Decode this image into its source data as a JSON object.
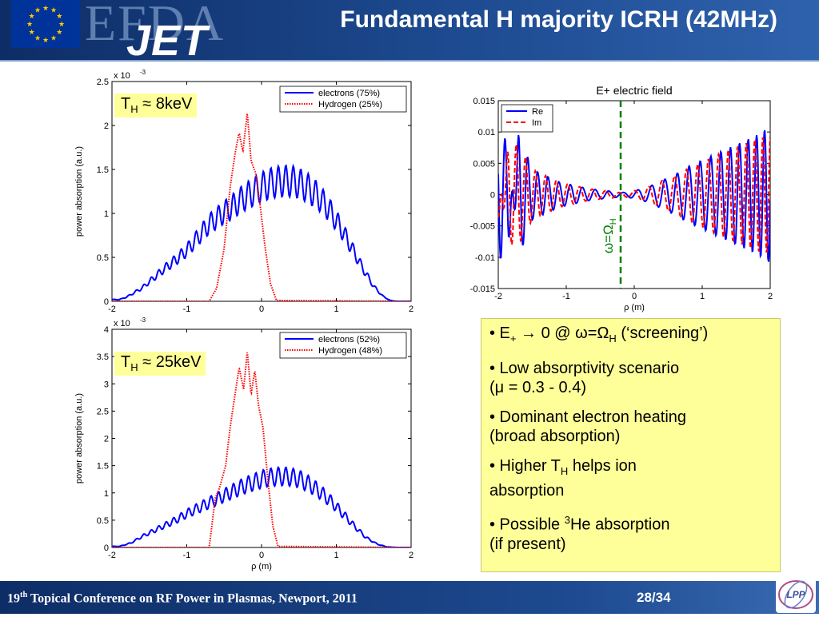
{
  "header": {
    "title": "Fundamental H majority ICRH (42MHz)",
    "logo_efda": "EFDA",
    "logo_jet": "JET"
  },
  "footer": {
    "conference_ord": "19",
    "conference_sup": "th",
    "conference_rest": " Topical Conference on RF Power in Plasmas, Newport, 2011",
    "page": "28/34",
    "logo_text": "LPP"
  },
  "labels": {
    "th1_sym": "T",
    "th1_sub": "H",
    "th1_val": " ≈ 8keV",
    "th2_sym": "T",
    "th2_sub": "H",
    "th2_val": " ≈ 25keV",
    "omega_vertical": "ω=Ω",
    "omega_vertical_sub": "H"
  },
  "notes": {
    "n1_a": "• E",
    "n1_sub": "+",
    "n1_b": " → 0 @ ω=Ω",
    "n1_sub2": "H",
    "n1_c": " (‘screening’)",
    "n2_l1": "• Low absorptivity scenario",
    "n2_l2": "(μ = 0.3 - 0.4)",
    "n3_l1": "• Dominant electron heating",
    "n3_l2": "(broad absorption)",
    "n4_a": "• Higher T",
    "n4_sub": "H",
    "n4_b": " helps ion",
    "n4_l2": "absorption",
    "n5_a": "• Possible ",
    "n5_sup": "3",
    "n5_b": "He absorption",
    "n5_l2": "(if present)"
  },
  "colors": {
    "electrons": "#0000ff",
    "hydrogen": "#ff0000",
    "re": "#0000ff",
    "im": "#ff0000",
    "resonance_line": "#007f00",
    "highlight": "#ffff99"
  },
  "chart_data": [
    {
      "type": "line",
      "title": "",
      "xlabel": "",
      "ylabel": "power absorption (a.u.)",
      "y_multiplier": "x 10",
      "y_multiplier_exp": "-3",
      "xlim": [
        -2,
        2
      ],
      "ylim": [
        0,
        2.5
      ],
      "xticks": [
        -2,
        -1,
        0,
        1,
        2
      ],
      "yticks": [
        0,
        0.5,
        1,
        1.5,
        2,
        2.5
      ],
      "xtick_labels": [
        "-2",
        "-1",
        "0",
        "1",
        "2"
      ],
      "ytick_labels": [
        "0",
        "0.5",
        "1",
        "1.5",
        "2",
        "2.5"
      ],
      "legend": "top-right",
      "series": [
        {
          "name": "electrons (75%)",
          "style": "solid",
          "x": [
            -1.9,
            -1.8,
            -1.6,
            -1.45,
            -1.3,
            -1.15,
            -1.0,
            -0.85,
            -0.7,
            -0.55,
            -0.4,
            -0.25,
            -0.1,
            0.0,
            0.15,
            0.3,
            0.45,
            0.6,
            0.75,
            0.9,
            1.05,
            1.2,
            1.35,
            1.5,
            1.62,
            1.72,
            1.8
          ],
          "y": [
            0.02,
            0.05,
            0.15,
            0.26,
            0.37,
            0.47,
            0.58,
            0.73,
            0.88,
            0.98,
            1.07,
            1.17,
            1.25,
            1.3,
            1.35,
            1.37,
            1.36,
            1.3,
            1.2,
            1.05,
            0.85,
            0.62,
            0.38,
            0.17,
            0.06,
            0.01,
            0.0
          ]
        },
        {
          "name": "Hydrogen (25%)",
          "style": "dotted",
          "x": [
            -1.9,
            -0.7,
            -0.6,
            -0.5,
            -0.42,
            -0.35,
            -0.3,
            -0.25,
            -0.19,
            -0.14,
            -0.08,
            -0.02,
            0.05,
            0.12,
            0.2,
            1.9
          ],
          "y": [
            0.0,
            0.0,
            0.15,
            0.6,
            1.3,
            1.7,
            1.92,
            1.7,
            2.15,
            1.6,
            1.46,
            1.1,
            0.6,
            0.2,
            0.01,
            0.0
          ]
        }
      ]
    },
    {
      "type": "line",
      "title": "",
      "xlabel": "ρ (m)",
      "ylabel": "power absorption (a.u.)",
      "y_multiplier": "x 10",
      "y_multiplier_exp": "-3",
      "xlim": [
        -2,
        2
      ],
      "ylim": [
        0,
        4
      ],
      "xticks": [
        -2,
        -1,
        0,
        1,
        2
      ],
      "yticks": [
        0,
        0.5,
        1,
        1.5,
        2,
        2.5,
        3,
        3.5,
        4
      ],
      "xtick_labels": [
        "-2",
        "-1",
        "0",
        "1",
        "2"
      ],
      "ytick_labels": [
        "0",
        "0.5",
        "1",
        "1.5",
        "2",
        "2.5",
        "3",
        "3.5",
        "4"
      ],
      "legend": "top-right",
      "series": [
        {
          "name": "electrons (52%)",
          "style": "solid",
          "x": [
            -1.9,
            -1.75,
            -1.6,
            -1.45,
            -1.3,
            -1.15,
            -1.0,
            -0.85,
            -0.7,
            -0.55,
            -0.4,
            -0.25,
            -0.1,
            0.05,
            0.2,
            0.35,
            0.5,
            0.65,
            0.8,
            0.95,
            1.1,
            1.25,
            1.4,
            1.55,
            1.68,
            1.8
          ],
          "y": [
            0.02,
            0.08,
            0.2,
            0.3,
            0.4,
            0.5,
            0.62,
            0.72,
            0.82,
            0.92,
            1.02,
            1.12,
            1.2,
            1.27,
            1.3,
            1.3,
            1.26,
            1.15,
            1.0,
            0.82,
            0.6,
            0.38,
            0.18,
            0.06,
            0.01,
            0.0
          ]
        },
        {
          "name": "Hydrogen (48%)",
          "style": "dotted",
          "x": [
            -1.9,
            -0.7,
            -0.62,
            -0.56,
            -0.48,
            -0.42,
            -0.36,
            -0.3,
            -0.24,
            -0.19,
            -0.14,
            -0.09,
            -0.04,
            0.02,
            0.08,
            0.15,
            0.22,
            1.9
          ],
          "y": [
            0.0,
            0.0,
            0.9,
            1.1,
            1.5,
            2.2,
            2.75,
            3.3,
            2.9,
            3.6,
            2.8,
            3.25,
            2.6,
            2.2,
            1.3,
            0.4,
            0.02,
            0.0
          ]
        }
      ]
    },
    {
      "type": "line",
      "title": "E+ electric field",
      "xlabel": "ρ (m)",
      "ylabel": "",
      "xlim": [
        -2,
        2
      ],
      "ylim": [
        -0.015,
        0.015
      ],
      "xticks": [
        -2,
        -1,
        0,
        1,
        2
      ],
      "yticks": [
        -0.015,
        -0.01,
        -0.005,
        0,
        0.005,
        0.01,
        0.015
      ],
      "xtick_labels": [
        "-2",
        "-1",
        "0",
        "1",
        "2"
      ],
      "ytick_labels": [
        "-0.015",
        "-0.01",
        "-0.005",
        "0",
        "0.005",
        "0.01",
        "0.015"
      ],
      "resonance_x": -0.2,
      "legend": "top-left",
      "series": [
        {
          "name": "Re",
          "style": "solid",
          "x": [
            -2.0,
            -1.85,
            -1.7,
            -1.5,
            -1.3,
            -1.1,
            -0.9,
            -0.7,
            -0.5,
            -0.3,
            -0.2,
            0.0,
            0.2,
            0.4,
            0.6,
            0.8,
            1.0,
            1.2,
            1.4,
            1.6,
            1.8,
            2.0
          ],
          "y": [
            -0.011,
            -0.008,
            0.01,
            0.004,
            0.003,
            0.002,
            0.0015,
            0.001,
            0.0007,
            0.0005,
            0.0003,
            0.0006,
            0.0012,
            0.0022,
            0.0032,
            0.0045,
            0.0055,
            0.0065,
            0.0075,
            0.0085,
            0.0095,
            0.011
          ]
        },
        {
          "name": "Im",
          "style": "dashed",
          "x": [
            -2.0,
            -1.85,
            -1.7,
            -1.5,
            -1.3,
            -1.1,
            -0.9,
            -0.7,
            -0.5,
            -0.3,
            -0.2,
            0.0,
            0.2,
            0.4,
            0.6,
            0.8,
            1.0,
            1.2,
            1.4,
            1.6,
            1.8,
            2.0
          ],
          "y": [
            -0.004,
            0.008,
            0.008,
            0.004,
            0.003,
            0.002,
            0.0015,
            0.001,
            0.0007,
            0.0005,
            0.0003,
            0.0006,
            0.0012,
            0.0022,
            0.003,
            0.0042,
            0.0052,
            0.0062,
            0.0072,
            0.008,
            0.009,
            0.0095
          ]
        }
      ]
    }
  ]
}
